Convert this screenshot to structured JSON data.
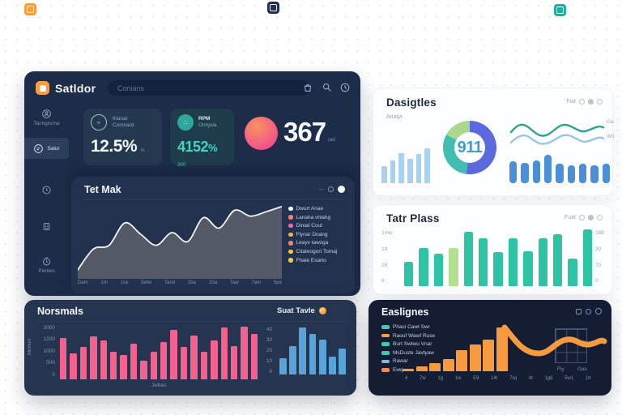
{
  "floating_icons": {
    "left_color": "#f59e42",
    "center_color": "#22304a",
    "right_color": "#17b3a0"
  },
  "dashboard": {
    "app_title": "Satldor",
    "search_placeholder": "Conians",
    "sidebar": {
      "items": [
        {
          "label": "Tachgrume"
        },
        {
          "label": "Salur"
        },
        {
          "label": ""
        },
        {
          "label": ""
        },
        {
          "label": "Pentes"
        }
      ]
    },
    "kpis": {
      "card1": {
        "label_line1": "Klanal",
        "label_line2": "Comvard",
        "value": "12.5%",
        "sup": "m"
      },
      "card2": {
        "label_line1": "RPM",
        "label_line2": "Onnjula",
        "value": "4152",
        "suffix": "%",
        "sup": "200"
      },
      "stat": {
        "value": "367",
        "suffix": "rad"
      }
    },
    "area_chart": {
      "title": "Tet Mak",
      "line_color": "#f2f5f9",
      "fill_color": "#585d68",
      "points": [
        88,
        60,
        55,
        25,
        40,
        55,
        38,
        50,
        18,
        32,
        8,
        16,
        10,
        3
      ],
      "x_labels": [
        "Dam",
        "1m",
        "1sa",
        "Setw",
        "Tand",
        "1ba",
        "1Sa",
        "Taw",
        "7am",
        "5pa"
      ],
      "legend": [
        {
          "label": "Dwurt Anae",
          "color": "#ffffff"
        },
        {
          "label": "Lanaha vhlahg",
          "color": "#e8837f"
        },
        {
          "label": "Dinad Cout",
          "color": "#ee6d9d"
        },
        {
          "label": "Flynar Doang",
          "color": "#edb644"
        },
        {
          "label": "Leayv tawzga",
          "color": "#e8837f"
        },
        {
          "label": "Citateogort Tomaj",
          "color": "#efc94c"
        },
        {
          "label": "Fhate Exarto",
          "color": "#efc94c"
        }
      ]
    }
  },
  "dasigtles": {
    "title": "Dasigtles",
    "toolbar_label": "Fiat",
    "subtitle": "Anatja",
    "left_bars": {
      "values": [
        48,
        65,
        87,
        70,
        83,
        100
      ],
      "color": "#a9d2ef"
    },
    "donut": {
      "value": "911",
      "segments": [
        {
          "color": "#5a69dd",
          "pct": 52
        },
        {
          "color": "#41bdb3",
          "pct": 31
        },
        {
          "color": "#a8d98c",
          "pct": 17
        }
      ]
    },
    "waves": {
      "top_color": "#2aa489",
      "bottom_color": "#93c6e8",
      "label_top": "Ga",
      "label_bottom": "Wo"
    },
    "right_bars": {
      "values": [
        76,
        72,
        80,
        100,
        68,
        64,
        68,
        64,
        68
      ],
      "color": "#4b8fd6"
    }
  },
  "tatr_plass": {
    "title": "Tatr Plass",
    "toolbar_label": "Fuat",
    "y_left": [
      "1mw",
      "18",
      "26",
      "8"
    ],
    "y_right": [
      "168",
      "30",
      "70",
      "0"
    ],
    "bars": {
      "values": [
        43,
        67,
        57,
        67,
        96,
        85,
        60,
        85,
        62,
        85,
        92,
        49,
        100
      ],
      "color": "#2fc3a5",
      "highlight_index": 3,
      "highlight_color": "#b4df8e"
    }
  },
  "norsmals": {
    "title": "Norsmals",
    "y_labels": [
      "2000",
      "1200",
      "1000",
      "500",
      "0"
    ],
    "y_axis_label": "Mnsturt",
    "x_axis_label": "Jwbas",
    "bars": {
      "values": [
        78,
        48,
        60,
        80,
        72,
        52,
        45,
        66,
        35,
        52,
        70,
        92,
        60,
        82,
        52,
        72,
        97,
        62,
        98,
        85
      ],
      "color": "#f4618f"
    },
    "mini": {
      "title": "Suat Tavle",
      "y_labels": [
        "40",
        "30",
        "20",
        "10",
        "0"
      ],
      "bars": {
        "values": [
          35,
          60,
          100,
          86,
          74,
          38,
          55
        ],
        "color": "#58a3d8"
      }
    }
  },
  "easlignes": {
    "title": "Easlignes",
    "legend": [
      {
        "label": "Phaci Cawt Swr",
        "color": "#3ec9b0"
      },
      {
        "label": "Raouf Wawf Ruse",
        "color": "#f5a142"
      },
      {
        "label": "Burt Swtwu Vnar",
        "color": "#3ec9b0"
      },
      {
        "label": "MsDuste Javtyaw",
        "color": "#3ec9b0"
      },
      {
        "label": "Rawar",
        "color": "#7fb8d8"
      },
      {
        "label": "Ewq",
        "color": "#f08a5a"
      }
    ],
    "bars": {
      "values": [
        6,
        11,
        18,
        27,
        48,
        61,
        72,
        100
      ],
      "color": "#f59a3e"
    },
    "line_color": "#f59a3e",
    "grid_labels": [
      "Fly",
      "Gas"
    ],
    "x_labels": [
      "4",
      "7w",
      "1g",
      "1w",
      "E9",
      "14t",
      "7wj",
      "4t",
      "1g8",
      "5w1",
      "1tr"
    ]
  }
}
